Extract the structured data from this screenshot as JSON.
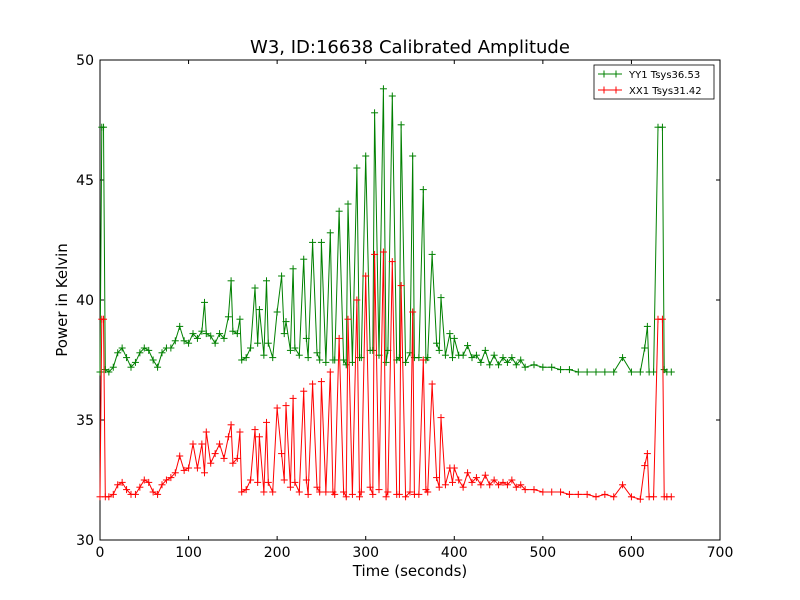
{
  "chart_data": {
    "type": "line",
    "title": "W3, ID:16638 Calibrated Amplitude",
    "xlabel": "Time (seconds)",
    "ylabel": "Power in Kelvin",
    "xlim": [
      0,
      700
    ],
    "ylim": [
      30,
      50
    ],
    "xticks": [
      0,
      100,
      200,
      300,
      400,
      500,
      600,
      700
    ],
    "yticks": [
      30,
      35,
      40,
      45,
      50
    ],
    "grid": false,
    "legend_position": "top-right",
    "marker": "+",
    "series": [
      {
        "name": "YY1 Tsys36.53",
        "color": "#008000",
        "x": [
          0,
          2,
          4,
          6,
          10,
          15,
          20,
          25,
          30,
          35,
          40,
          45,
          50,
          55,
          60,
          65,
          70,
          75,
          80,
          85,
          90,
          95,
          100,
          105,
          110,
          115,
          118,
          120,
          125,
          130,
          135,
          140,
          145,
          148,
          150,
          155,
          158,
          160,
          165,
          170,
          175,
          178,
          180,
          185,
          188,
          190,
          195,
          200,
          205,
          208,
          210,
          215,
          218,
          220,
          225,
          230,
          233,
          235,
          240,
          245,
          248,
          250,
          255,
          260,
          263,
          265,
          270,
          275,
          278,
          280,
          285,
          290,
          293,
          295,
          300,
          305,
          308,
          310,
          315,
          320,
          323,
          325,
          330,
          335,
          338,
          340,
          345,
          350,
          353,
          355,
          360,
          365,
          368,
          370,
          375,
          380,
          383,
          385,
          390,
          395,
          398,
          400,
          405,
          410,
          415,
          420,
          425,
          430,
          435,
          440,
          445,
          450,
          455,
          460,
          465,
          470,
          475,
          480,
          490,
          500,
          510,
          520,
          530,
          540,
          550,
          560,
          570,
          580,
          590,
          600,
          610,
          615,
          618,
          620,
          625,
          630,
          635,
          637,
          640,
          645
        ],
        "y": [
          37.0,
          47.2,
          47.2,
          37.1,
          37.0,
          37.2,
          37.8,
          38.0,
          37.6,
          37.2,
          37.4,
          37.8,
          38.0,
          37.9,
          37.5,
          37.2,
          37.8,
          38.0,
          38.0,
          38.3,
          38.9,
          38.3,
          38.2,
          38.6,
          38.4,
          38.7,
          39.9,
          38.6,
          38.5,
          38.2,
          38.6,
          38.4,
          39.3,
          40.8,
          38.7,
          38.6,
          39.2,
          37.5,
          37.6,
          38.0,
          40.5,
          38.2,
          39.6,
          37.7,
          40.8,
          38.2,
          37.6,
          39.5,
          41.0,
          38.6,
          39.1,
          37.9,
          41.3,
          38.0,
          37.7,
          41.7,
          38.4,
          37.6,
          42.4,
          37.8,
          37.5,
          42.4,
          37.4,
          42.8,
          37.5,
          37.5,
          43.7,
          37.5,
          37.3,
          44.0,
          37.4,
          45.5,
          37.6,
          37.6,
          46.0,
          37.9,
          37.9,
          47.8,
          37.7,
          48.8,
          37.4,
          37.9,
          48.5,
          37.5,
          37.6,
          47.3,
          37.4,
          37.8,
          46.0,
          37.6,
          37.6,
          44.6,
          37.5,
          37.6,
          41.9,
          38.2,
          37.9,
          40.1,
          37.7,
          38.6,
          37.6,
          38.4,
          37.7,
          37.7,
          38.1,
          37.6,
          37.7,
          37.4,
          37.9,
          37.3,
          37.7,
          37.3,
          37.6,
          37.4,
          37.6,
          37.3,
          37.5,
          37.2,
          37.3,
          37.2,
          37.2,
          37.1,
          37.1,
          37.0,
          37.0,
          37.0,
          37.0,
          37.0,
          37.6,
          37.0,
          37.0,
          38.0,
          38.9,
          37.0,
          37.0,
          47.2,
          47.2,
          37.1,
          37.0,
          37.0
        ]
      },
      {
        "name": "XX1 Tsys31.42",
        "color": "#ff0000",
        "x": [
          0,
          2,
          4,
          6,
          10,
          15,
          20,
          25,
          30,
          35,
          40,
          45,
          50,
          55,
          60,
          65,
          70,
          75,
          80,
          85,
          90,
          95,
          100,
          105,
          110,
          115,
          118,
          120,
          125,
          130,
          135,
          140,
          145,
          148,
          150,
          155,
          158,
          160,
          165,
          170,
          175,
          178,
          180,
          185,
          188,
          190,
          195,
          200,
          205,
          208,
          210,
          215,
          218,
          220,
          225,
          230,
          233,
          235,
          240,
          245,
          248,
          250,
          255,
          260,
          263,
          265,
          270,
          275,
          278,
          280,
          285,
          290,
          293,
          295,
          300,
          305,
          308,
          310,
          315,
          320,
          323,
          325,
          330,
          335,
          338,
          340,
          345,
          350,
          353,
          355,
          360,
          365,
          368,
          370,
          375,
          380,
          383,
          385,
          390,
          395,
          398,
          400,
          405,
          410,
          415,
          420,
          425,
          430,
          435,
          440,
          445,
          450,
          455,
          460,
          465,
          470,
          475,
          480,
          490,
          500,
          510,
          520,
          530,
          540,
          550,
          560,
          570,
          580,
          590,
          600,
          610,
          615,
          618,
          620,
          625,
          630,
          635,
          637,
          640,
          645
        ],
        "y": [
          31.8,
          39.2,
          39.2,
          31.8,
          31.8,
          31.9,
          32.3,
          32.4,
          32.1,
          31.9,
          31.9,
          32.2,
          32.5,
          32.4,
          32.0,
          31.9,
          32.3,
          32.5,
          32.6,
          32.8,
          33.5,
          32.9,
          33.0,
          34.0,
          33.0,
          34.0,
          32.8,
          34.5,
          33.2,
          33.6,
          34.0,
          33.4,
          34.3,
          34.8,
          33.2,
          33.4,
          34.5,
          32.0,
          32.1,
          32.5,
          34.6,
          32.4,
          34.3,
          32.0,
          34.9,
          32.4,
          32.0,
          35.5,
          33.6,
          32.5,
          35.6,
          32.2,
          35.9,
          32.4,
          32.0,
          36.2,
          32.5,
          31.9,
          36.5,
          32.2,
          32.0,
          36.6,
          32.0,
          37.0,
          32.0,
          31.9,
          38.4,
          32.0,
          31.8,
          39.2,
          31.9,
          40.0,
          31.8,
          32.0,
          41.0,
          32.2,
          31.9,
          41.9,
          32.1,
          42.0,
          31.8,
          32.0,
          41.6,
          31.9,
          31.9,
          40.6,
          31.8,
          32.0,
          39.5,
          31.9,
          31.9,
          37.5,
          32.1,
          32.0,
          36.5,
          32.6,
          32.2,
          35.1,
          32.3,
          33.0,
          32.4,
          33.0,
          32.5,
          32.2,
          32.8,
          32.4,
          32.6,
          32.3,
          32.7,
          32.3,
          32.5,
          32.3,
          32.4,
          32.3,
          32.5,
          32.2,
          32.3,
          32.1,
          32.1,
          32.0,
          32.0,
          32.0,
          31.9,
          31.9,
          31.9,
          31.8,
          31.9,
          31.8,
          32.3,
          31.8,
          31.7,
          33.1,
          33.6,
          31.8,
          31.8,
          39.2,
          39.2,
          31.8,
          31.8,
          31.8
        ]
      }
    ]
  }
}
